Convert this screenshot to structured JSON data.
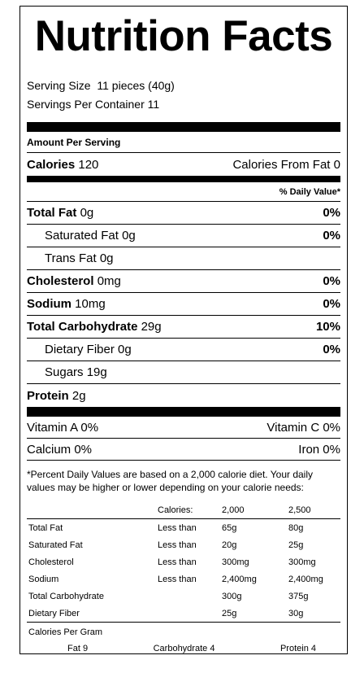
{
  "title": "Nutrition Facts",
  "serving": {
    "size_label": "Serving Size",
    "size_value": "11 pieces (40g)",
    "per_container_label": "Servings Per Container",
    "per_container_value": "11"
  },
  "amount_per_serving": "Amount Per Serving",
  "calories": {
    "label": "Calories",
    "value": "120",
    "from_fat_label": "Calories From Fat",
    "from_fat_value": "0"
  },
  "daily_value_header": "% Daily Value*",
  "nutrients": [
    {
      "label": "Total Fat",
      "amount": "0g",
      "dv": "0%",
      "bold": true,
      "indent": false
    },
    {
      "label": "Saturated Fat",
      "amount": "0g",
      "dv": "0%",
      "bold": false,
      "indent": true
    },
    {
      "label": "Trans Fat",
      "amount": "0g",
      "dv": "",
      "bold": false,
      "indent": true
    },
    {
      "label": "Cholesterol",
      "amount": "0mg",
      "dv": "0%",
      "bold": true,
      "indent": false
    },
    {
      "label": "Sodium",
      "amount": "10mg",
      "dv": "0%",
      "bold": true,
      "indent": false
    },
    {
      "label": "Total Carbohydrate",
      "amount": "29g",
      "dv": "10%",
      "bold": true,
      "indent": false
    },
    {
      "label": "Dietary Fiber",
      "amount": "0g",
      "dv": "0%",
      "bold": false,
      "indent": true
    },
    {
      "label": "Sugars",
      "amount": "19g",
      "dv": "",
      "bold": false,
      "indent": true
    },
    {
      "label": "Protein",
      "amount": "2g",
      "dv": "",
      "bold": true,
      "indent": false
    }
  ],
  "vitamins": [
    {
      "left": "Vitamin A 0%",
      "right": "Vitamin C 0%"
    },
    {
      "left": "Calcium 0%",
      "right": "Iron 0%"
    }
  ],
  "footnote": "*Percent Daily Values are based on a 2,000 calorie diet. Your daily values may be higher or lower depending on your calorie needs:",
  "dv_table": {
    "header": [
      "",
      "Calories:",
      "2,000",
      "2,500"
    ],
    "rows": [
      [
        "Total Fat",
        "Less than",
        "65g",
        "80g"
      ],
      [
        "Saturated Fat",
        "Less than",
        "20g",
        "25g"
      ],
      [
        "Cholesterol",
        "Less than",
        "300mg",
        "300mg"
      ],
      [
        "Sodium",
        "Less than",
        "2,400mg",
        "2,400mg"
      ],
      [
        "Total Carbohydrate",
        "",
        "300g",
        "375g"
      ],
      [
        "Dietary Fiber",
        "",
        "25g",
        "30g"
      ]
    ]
  },
  "calories_per_gram": {
    "label": "Calories Per Gram",
    "fat": "Fat 9",
    "carbohydrate": "Carbohydrate 4",
    "protein": "Protein 4"
  }
}
